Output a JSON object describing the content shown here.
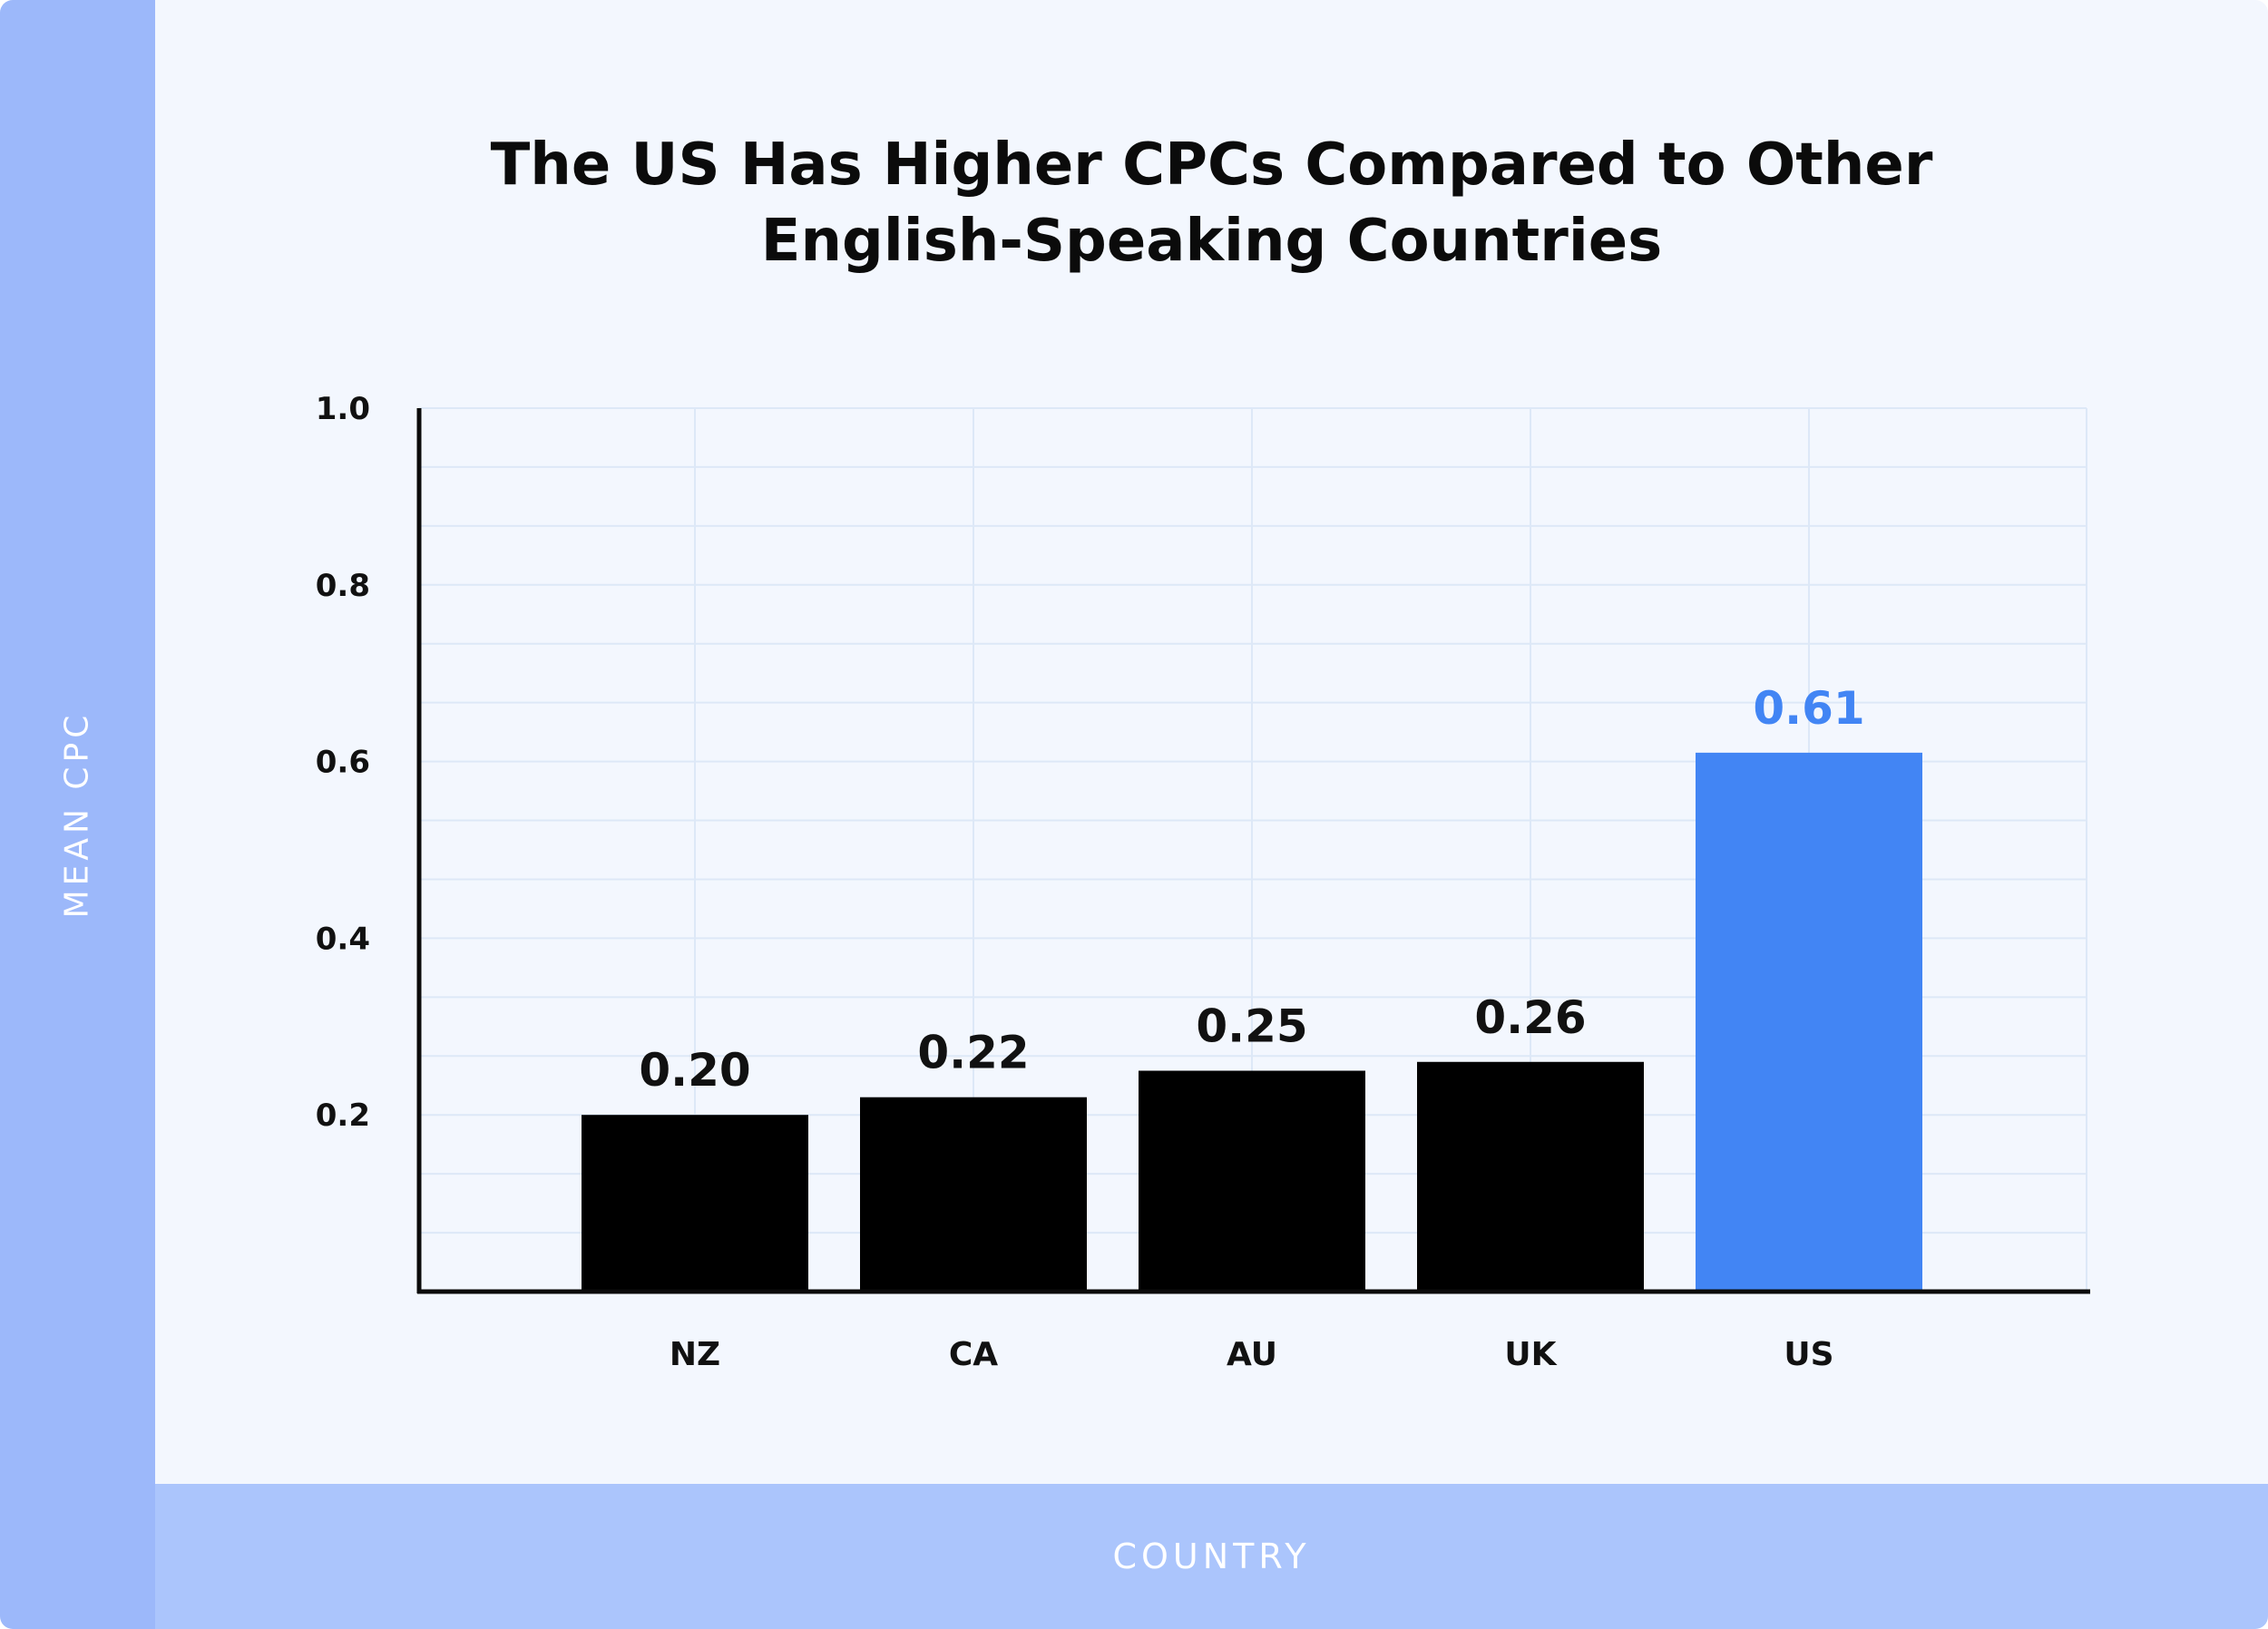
{
  "chart_data": {
    "type": "bar",
    "title": "The US Has Higher CPCs Compared to Other English-Speaking Countries",
    "title_lines": [
      "The US Has Higher CPCs Compared to Other",
      "English-Speaking Countries"
    ],
    "xlabel": "COUNTRY",
    "ylabel": "MEAN CPC",
    "categories": [
      "NZ",
      "CA",
      "AU",
      "UK",
      "US"
    ],
    "values": [
      0.2,
      0.22,
      0.25,
      0.26,
      0.61
    ],
    "data_labels": [
      "0.20",
      "0.22",
      "0.25",
      "0.26",
      "0.61"
    ],
    "ylim": [
      0,
      1.0
    ],
    "yticks": [
      0.2,
      0.4,
      0.6,
      0.8,
      1.0
    ],
    "ytick_labels": [
      "0.2",
      "0.4",
      "0.6",
      "0.8",
      "1.0"
    ],
    "grid": true,
    "legend": "none",
    "colors": {
      "bars": [
        "#000000",
        "#000000",
        "#000000",
        "#000000",
        "#4285f4"
      ],
      "data_labels": [
        "#111111",
        "#111111",
        "#111111",
        "#111111",
        "#4285f4"
      ],
      "grid": "#dde8f7",
      "axis": "#0b0b0b",
      "background": "#f3f7fe",
      "ylabel_band": "#9cb8fa",
      "xlabel_band": "#abc5fc"
    }
  }
}
